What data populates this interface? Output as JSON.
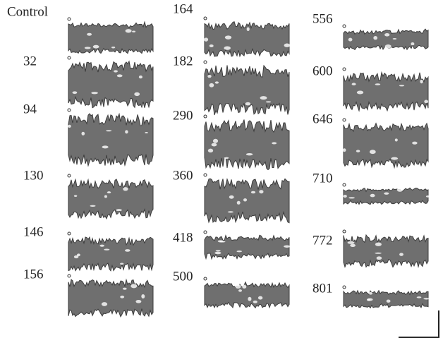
{
  "panels": [
    {
      "label": "Control"
    },
    {
      "label": "32"
    },
    {
      "label": "94"
    },
    {
      "label": "130"
    },
    {
      "label": "146"
    },
    {
      "label": "156"
    },
    {
      "label": "164"
    },
    {
      "label": "182"
    },
    {
      "label": "290"
    },
    {
      "label": "360"
    },
    {
      "label": "418"
    },
    {
      "label": "500"
    },
    {
      "label": "556"
    },
    {
      "label": "600"
    },
    {
      "label": "646"
    },
    {
      "label": "710"
    },
    {
      "label": "772"
    },
    {
      "label": "801"
    }
  ]
}
